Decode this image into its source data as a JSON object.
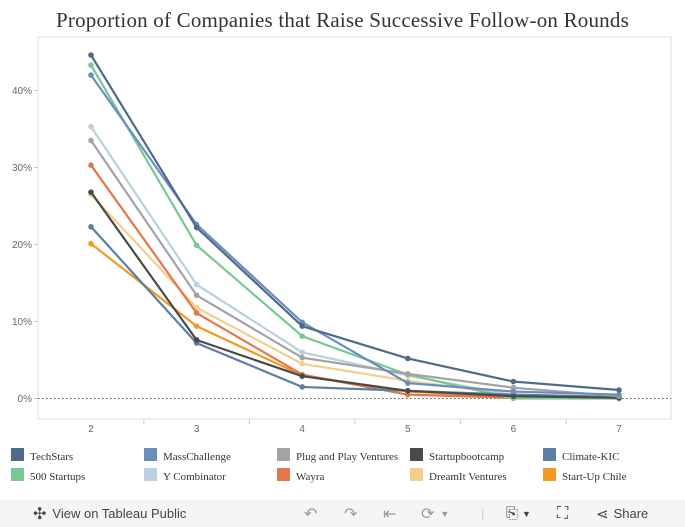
{
  "chart_data": {
    "type": "line",
    "title": "Proportion of Companies that Raise Successive Follow-on Rounds",
    "xlabel": "",
    "ylabel": "",
    "x": [
      2,
      3,
      4,
      5,
      6,
      7
    ],
    "x_tick_labels": [
      "2",
      "3",
      "4",
      "5",
      "6",
      "7"
    ],
    "y_tick_labels": [
      "0%",
      "10%",
      "20%",
      "30%",
      "40%"
    ],
    "y_ticks": [
      0,
      10,
      20,
      30,
      40
    ],
    "ylim": [
      -2.7,
      46.9
    ],
    "grid": false,
    "reference_line": {
      "value": 0,
      "style": "dotted"
    },
    "legend_position": "bottom",
    "series": [
      {
        "name": "TechStars",
        "color": "#4e6b8c",
        "values": [
          44.6,
          22.2,
          9.4,
          5.2,
          2.2,
          1.1
        ]
      },
      {
        "name": "MassChallenge",
        "color": "#6a8dc2",
        "values": [
          42.0,
          22.6,
          9.9,
          2.0,
          0.9,
          0.5
        ]
      },
      {
        "name": "Plug and Play Ventures",
        "color": "#a3a3a3",
        "values": [
          33.5,
          13.4,
          5.3,
          3.2,
          1.4,
          0.3
        ]
      },
      {
        "name": "Startupbootcamp",
        "color": "#4a4a4a",
        "values": [
          26.8,
          7.6,
          2.9,
          1.0,
          0.3,
          0.1
        ]
      },
      {
        "name": "Climate-KIC",
        "color": "#5e7ea3",
        "values": [
          22.3,
          7.2,
          1.5,
          1.0,
          0.5,
          0.2
        ]
      },
      {
        "name": "500 Startups",
        "color": "#79c894",
        "values": [
          43.3,
          19.9,
          8.1,
          3.1,
          0.0,
          0.0
        ]
      },
      {
        "name": "Y Combinator",
        "color": "#b9d0de",
        "values": [
          35.3,
          14.8,
          6.0,
          3.0,
          0.4,
          0.2
        ]
      },
      {
        "name": "Wayra",
        "color": "#e2774a",
        "values": [
          30.3,
          11.1,
          3.1,
          0.5,
          0.1,
          0.0
        ]
      },
      {
        "name": "DreamIt Ventures",
        "color": "#f3cf8c",
        "values": [
          26.5,
          11.8,
          4.5,
          2.3,
          0.5,
          0.1
        ]
      },
      {
        "name": "Start-Up Chile",
        "color": "#f19a26",
        "values": [
          20.1,
          9.4,
          3.0,
          0.9,
          0.2,
          0.0
        ]
      }
    ]
  },
  "toolbar": {
    "view_label": "View on Tableau Public",
    "share_label": "Share"
  }
}
